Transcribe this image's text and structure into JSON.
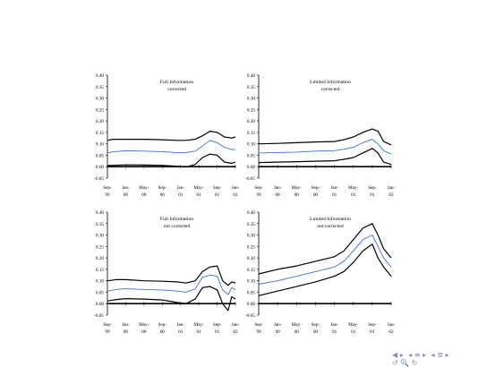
{
  "chart_data": [
    {
      "type": "line",
      "title": "Full Information\ncorrected",
      "ylim": [
        -0.05,
        0.4
      ],
      "yticks": [
        "0.40",
        "0.35",
        "0.30",
        "0.25",
        "0.20",
        "0.15",
        "0.10",
        "0.05",
        "0.00",
        "-0.05"
      ],
      "xticks": [
        [
          "Sep-",
          "99"
        ],
        [
          "Jan-",
          "00"
        ],
        [
          "May-",
          "00"
        ],
        [
          "Sep-",
          "00"
        ],
        [
          "Jan-",
          "01"
        ],
        [
          "May-",
          "01"
        ],
        [
          "Sep-",
          "01"
        ],
        [
          "Jan-",
          "02"
        ]
      ],
      "x": [
        0,
        0.3,
        1,
        2,
        3,
        3.8,
        4.3,
        4.8,
        5.2,
        5.6,
        6,
        6.4,
        6.8,
        7
      ],
      "series": [
        {
          "role": "upper",
          "values": [
            0.115,
            0.12,
            0.12,
            0.12,
            0.118,
            0.115,
            0.115,
            0.12,
            0.135,
            0.155,
            0.15,
            0.13,
            0.125,
            0.13
          ]
        },
        {
          "role": "center",
          "values": [
            0.06,
            0.065,
            0.07,
            0.068,
            0.066,
            0.062,
            0.062,
            0.068,
            0.09,
            0.115,
            0.105,
            0.085,
            0.075,
            0.075
          ]
        },
        {
          "role": "lower",
          "values": [
            0.005,
            0.006,
            0.008,
            0.007,
            0.006,
            0.002,
            -0.002,
            0.01,
            0.04,
            0.055,
            0.05,
            0.02,
            0.015,
            0.02
          ]
        }
      ]
    },
    {
      "type": "line",
      "title": "Limited Information\ncorrected",
      "ylim": [
        -0.05,
        0.4
      ],
      "yticks": [
        "0.40",
        "0.35",
        "0.30",
        "0.25",
        "0.20",
        "0.15",
        "0.10",
        "0.05",
        "0.00",
        "-0.05"
      ],
      "xticks": [
        [
          "Sep-",
          "99"
        ],
        [
          "Jan-",
          "00"
        ],
        [
          "May-",
          "00"
        ],
        [
          "Sep-",
          "00"
        ],
        [
          "Jan-",
          "01"
        ],
        [
          "May-",
          "01"
        ],
        [
          "Sep-",
          "01"
        ],
        [
          "Jan-",
          "02"
        ]
      ],
      "x": [
        0,
        1,
        2,
        3,
        4,
        4.5,
        5,
        5.5,
        6,
        6.3,
        6.6,
        7
      ],
      "series": [
        {
          "role": "upper",
          "values": [
            0.1,
            0.102,
            0.105,
            0.108,
            0.11,
            0.118,
            0.13,
            0.15,
            0.165,
            0.155,
            0.11,
            0.095
          ]
        },
        {
          "role": "center",
          "values": [
            0.06,
            0.062,
            0.064,
            0.068,
            0.07,
            0.076,
            0.085,
            0.105,
            0.12,
            0.1,
            0.07,
            0.055
          ]
        },
        {
          "role": "lower",
          "values": [
            0.018,
            0.02,
            0.022,
            0.024,
            0.026,
            0.032,
            0.04,
            0.06,
            0.08,
            0.06,
            0.02,
            0.01
          ]
        }
      ]
    },
    {
      "type": "line",
      "title": "Full Information\nnot corrected",
      "ylim": [
        -0.05,
        0.4
      ],
      "yticks": [
        "0.40",
        "0.35",
        "0.30",
        "0.25",
        "0.20",
        "0.15",
        "0.10",
        "0.05",
        "0.00",
        "-0.05"
      ],
      "xticks": [
        [
          "Sep-",
          "99"
        ],
        [
          "Jan-",
          "00"
        ],
        [
          "May-",
          "00"
        ],
        [
          "Sep-",
          "00"
        ],
        [
          "Jan-",
          "01"
        ],
        [
          "May-",
          "01"
        ],
        [
          "Sep-",
          "01"
        ],
        [
          "Jan-",
          "02"
        ]
      ],
      "x": [
        0,
        0.5,
        1,
        2,
        3,
        3.8,
        4.3,
        4.8,
        5.2,
        5.6,
        6,
        6.3,
        6.6,
        6.8,
        7
      ],
      "series": [
        {
          "role": "upper",
          "values": [
            0.1,
            0.105,
            0.105,
            0.1,
            0.098,
            0.095,
            0.09,
            0.1,
            0.14,
            0.16,
            0.165,
            0.1,
            0.08,
            0.095,
            0.09
          ]
        },
        {
          "role": "center",
          "values": [
            0.055,
            0.062,
            0.065,
            0.062,
            0.06,
            0.055,
            0.05,
            0.065,
            0.115,
            0.125,
            0.12,
            0.06,
            0.04,
            0.07,
            0.06
          ]
        },
        {
          "role": "lower",
          "values": [
            0.012,
            0.018,
            0.022,
            0.02,
            0.016,
            0.005,
            0.0,
            0.02,
            0.07,
            0.075,
            0.06,
            0.0,
            -0.03,
            0.03,
            0.02
          ]
        }
      ]
    },
    {
      "type": "line",
      "title": "Limited Information\nnot corrected",
      "ylim": [
        -0.05,
        0.4
      ],
      "yticks": [
        "0.40",
        "0.35",
        "0.30",
        "0.25",
        "0.20",
        "0.15",
        "0.10",
        "0.05",
        "0.00",
        "-0.05"
      ],
      "xticks": [
        [
          "Sep-",
          "99"
        ],
        [
          "Jan-",
          "00"
        ],
        [
          "May-",
          "00"
        ],
        [
          "Sep-",
          "00"
        ],
        [
          "Jan-",
          "01"
        ],
        [
          "May-",
          "01"
        ],
        [
          "Sep-",
          "01"
        ],
        [
          "Jan-",
          "02"
        ]
      ],
      "x": [
        0,
        1,
        2,
        3,
        4,
        4.5,
        5,
        5.5,
        6,
        6.3,
        6.6,
        7
      ],
      "series": [
        {
          "role": "upper",
          "values": [
            0.13,
            0.15,
            0.165,
            0.185,
            0.205,
            0.23,
            0.28,
            0.33,
            0.35,
            0.3,
            0.24,
            0.2
          ]
        },
        {
          "role": "center",
          "values": [
            0.085,
            0.1,
            0.12,
            0.14,
            0.16,
            0.185,
            0.23,
            0.28,
            0.3,
            0.25,
            0.2,
            0.16
          ]
        },
        {
          "role": "lower",
          "values": [
            0.035,
            0.055,
            0.075,
            0.095,
            0.12,
            0.14,
            0.18,
            0.23,
            0.26,
            0.2,
            0.16,
            0.12
          ]
        }
      ]
    }
  ],
  "colors": {
    "band": "#000000",
    "center": "#3f6fe0",
    "axis": "#000000",
    "nav": "#8c8cb4"
  },
  "nav": {
    "icons": [
      "arrow-left-icon",
      "arrow-right-icon",
      "list-icon",
      "search-icon"
    ],
    "glyphs": [
      "◀ ▸",
      "◂ ≡ ▸",
      "◂ ≣ ▸",
      "↺ 🔍 ↻"
    ]
  }
}
